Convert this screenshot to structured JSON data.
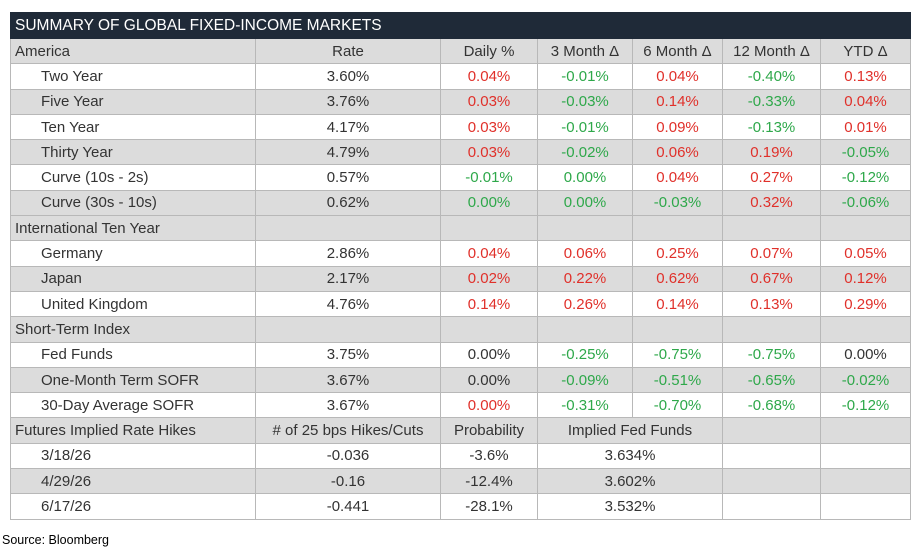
{
  "title": "SUMMARY OF GLOBAL FIXED-INCOME MARKETS",
  "sections": [
    {
      "header": [
        "America",
        "Rate",
        "Daily %",
        "3 Month Δ",
        "6 Month Δ",
        "12 Month Δ",
        "YTD Δ"
      ],
      "rows": [
        {
          "label": "Two Year",
          "cells": [
            "3.60%",
            "0.04%",
            "-0.01%",
            "0.04%",
            "-0.40%",
            "0.13%"
          ],
          "colors": [
            "#333333",
            "#e0302a",
            "#2ea84a",
            "#e0302a",
            "#2ea84a",
            "#e0302a"
          ]
        },
        {
          "label": "Five Year",
          "cells": [
            "3.76%",
            "0.03%",
            "-0.03%",
            "0.14%",
            "-0.33%",
            "0.04%"
          ],
          "colors": [
            "#333333",
            "#e0302a",
            "#2ea84a",
            "#e0302a",
            "#2ea84a",
            "#e0302a"
          ]
        },
        {
          "label": "Ten Year",
          "cells": [
            "4.17%",
            "0.03%",
            "-0.01%",
            "0.09%",
            "-0.13%",
            "0.01%"
          ],
          "colors": [
            "#333333",
            "#e0302a",
            "#2ea84a",
            "#e0302a",
            "#2ea84a",
            "#e0302a"
          ]
        },
        {
          "label": "Thirty Year",
          "cells": [
            "4.79%",
            "0.03%",
            "-0.02%",
            "0.06%",
            "0.19%",
            "-0.05%"
          ],
          "colors": [
            "#333333",
            "#e0302a",
            "#2ea84a",
            "#e0302a",
            "#e0302a",
            "#2ea84a"
          ]
        },
        {
          "label": "Curve (10s - 2s)",
          "cells": [
            "0.57%",
            "-0.01%",
            "0.00%",
            "0.04%",
            "0.27%",
            "-0.12%"
          ],
          "colors": [
            "#333333",
            "#2ea84a",
            "#2ea84a",
            "#e0302a",
            "#e0302a",
            "#2ea84a"
          ]
        },
        {
          "label": "Curve (30s - 10s)",
          "cells": [
            "0.62%",
            "0.00%",
            "0.00%",
            "-0.03%",
            "0.32%",
            "-0.06%"
          ],
          "colors": [
            "#333333",
            "#2ea84a",
            "#2ea84a",
            "#2ea84a",
            "#e0302a",
            "#2ea84a"
          ]
        }
      ]
    },
    {
      "header": [
        "International Ten Year"
      ],
      "rows": [
        {
          "label": "Germany",
          "cells": [
            "2.86%",
            "0.04%",
            "0.06%",
            "0.25%",
            "0.07%",
            "0.05%"
          ],
          "colors": [
            "#333333",
            "#e0302a",
            "#e0302a",
            "#e0302a",
            "#e0302a",
            "#e0302a"
          ]
        },
        {
          "label": "Japan",
          "cells": [
            "2.17%",
            "0.02%",
            "0.22%",
            "0.62%",
            "0.67%",
            "0.12%"
          ],
          "colors": [
            "#333333",
            "#e0302a",
            "#e0302a",
            "#e0302a",
            "#e0302a",
            "#e0302a"
          ]
        },
        {
          "label": "United Kingdom",
          "cells": [
            "4.76%",
            "0.14%",
            "0.26%",
            "0.14%",
            "0.13%",
            "0.29%"
          ],
          "colors": [
            "#333333",
            "#e0302a",
            "#e0302a",
            "#e0302a",
            "#e0302a",
            "#e0302a"
          ]
        }
      ]
    },
    {
      "header": [
        "Short-Term Index"
      ],
      "rows": [
        {
          "label": "Fed Funds",
          "cells": [
            "3.75%",
            "0.00%",
            "-0.25%",
            "-0.75%",
            "-0.75%",
            "0.00%"
          ],
          "colors": [
            "#333333",
            "#333333",
            "#2ea84a",
            "#2ea84a",
            "#2ea84a",
            "#333333"
          ]
        },
        {
          "label": "One-Month Term SOFR",
          "cells": [
            "3.67%",
            "0.00%",
            "-0.09%",
            "-0.51%",
            "-0.65%",
            "-0.02%"
          ],
          "colors": [
            "#333333",
            "#333333",
            "#2ea84a",
            "#2ea84a",
            "#2ea84a",
            "#2ea84a"
          ]
        },
        {
          "label": "30-Day Average SOFR",
          "cells": [
            "3.67%",
            "0.00%",
            "-0.31%",
            "-0.70%",
            "-0.68%",
            "-0.12%"
          ],
          "colors": [
            "#333333",
            "#e0302a",
            "#2ea84a",
            "#2ea84a",
            "#2ea84a",
            "#2ea84a"
          ]
        }
      ]
    }
  ],
  "futures": {
    "header": [
      "Futures Implied Rate Hikes",
      "# of 25 bps Hikes/Cuts",
      "Probability",
      "Implied Fed Funds"
    ],
    "rows": [
      [
        "3/18/26",
        "-0.036",
        "-3.6%",
        "3.634%"
      ],
      [
        "4/29/26",
        "-0.16",
        "-12.4%",
        "3.602%"
      ],
      [
        "6/17/26",
        "-0.441",
        "-28.1%",
        "3.532%"
      ]
    ]
  },
  "source": "Source: Bloomberg"
}
